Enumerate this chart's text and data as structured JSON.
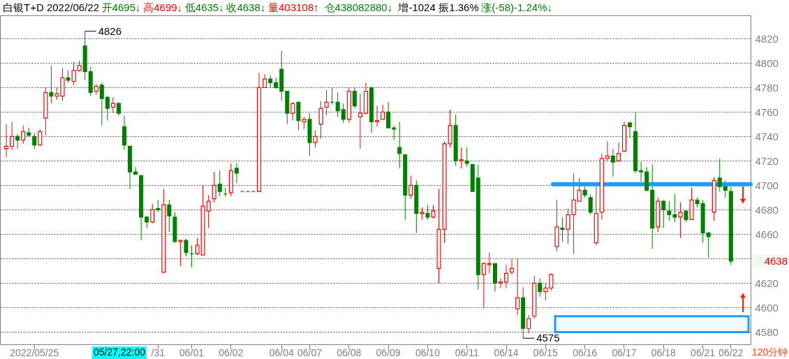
{
  "chart_data": {
    "type": "candlestick",
    "title": "白银T+D 2022/06/22 开4695↓高4699↓低4635↓收4638↓量403108↑ 仓438082880↓ 增-1024 振1.36% 涨(-58)-1.24%↓",
    "categories": [
      null,
      null,
      null,
      null,
      null,
      "2022/05/25",
      null,
      null,
      null,
      null,
      null,
      null,
      null,
      null,
      null,
      null,
      null,
      null,
      null,
      null,
      null,
      null,
      null,
      null,
      null,
      null,
      null,
      "/31",
      null,
      null,
      null,
      null,
      null,
      "06/01",
      null,
      null,
      null,
      null,
      null,
      null,
      "06/02",
      null,
      null,
      null,
      null,
      null,
      null,
      null,
      null,
      "06/04",
      null,
      null,
      null,
      null,
      "06/07",
      null,
      null,
      null,
      null,
      null,
      null,
      "06/08",
      null,
      null,
      null,
      null,
      null,
      null,
      "06/09",
      null,
      null,
      null,
      null,
      null,
      null,
      "06/10",
      null,
      null,
      null,
      null,
      null,
      null,
      "06/11",
      null,
      null,
      null,
      null,
      null,
      null,
      "06/14",
      null,
      null,
      null,
      null,
      null,
      null,
      "06/15",
      null,
      null,
      null,
      null,
      null,
      null,
      "06/16",
      null,
      null,
      null,
      null,
      null,
      null,
      "06/17",
      null,
      null,
      null,
      null,
      null,
      null,
      "06/18",
      null,
      null,
      null,
      null,
      null,
      null,
      "06/21",
      null,
      null,
      null,
      null,
      "06/22"
    ],
    "ohlc": [
      [
        4730,
        4750,
        4723,
        4732
      ],
      [
        4732,
        4752,
        4729,
        4740
      ],
      [
        4740,
        4742,
        4730,
        4737
      ],
      [
        4737,
        4749,
        4734,
        4744
      ],
      [
        4743,
        4747,
        4740,
        4741
      ],
      [
        4740,
        4743,
        4730,
        4733
      ],
      [
        4733,
        4746,
        4732,
        4744
      ],
      [
        4755,
        4780,
        4741,
        4776
      ],
      [
        4776,
        4798,
        4767,
        4773
      ],
      [
        4773,
        4780,
        4770,
        4775
      ],
      [
        4773,
        4796,
        4769,
        4788
      ],
      [
        4788,
        4794,
        4784,
        4786
      ],
      [
        4785,
        4801,
        4782,
        4794
      ],
      [
        4794,
        4802,
        4793,
        4798
      ],
      [
        4814,
        4826,
        4786,
        4793
      ],
      [
        4793,
        4797,
        4773,
        4776
      ],
      [
        4777,
        4783,
        4774,
        4781
      ],
      [
        4782,
        4784,
        4749,
        4771
      ],
      [
        4772,
        4773,
        4753,
        4763
      ],
      [
        4764,
        4772,
        4759,
        4767
      ],
      [
        4767,
        4768,
        4757,
        4759
      ],
      [
        4748,
        4757,
        4729,
        4733
      ],
      [
        4732,
        4732,
        4697,
        4711
      ],
      [
        4711,
        4715,
        4709,
        4709
      ],
      [
        4708,
        4708,
        4655,
        4674
      ],
      [
        4674,
        4675,
        4665,
        4670
      ],
      [
        4670,
        4685,
        4669,
        4680
      ],
      [
        4681,
        4688,
        4678,
        4680
      ],
      [
        4629,
        4697,
        4628,
        4684
      ],
      [
        4684,
        4688,
        4662,
        4675
      ],
      [
        4674,
        4678,
        4653,
        4654
      ],
      [
        4654,
        4655,
        4634,
        4655
      ],
      [
        4655,
        4656,
        4642,
        4645
      ],
      [
        4644,
        4651,
        4633,
        4644
      ],
      [
        4644,
        4657,
        4643,
        4651
      ],
      [
        4643,
        4700,
        4643,
        4683
      ],
      [
        4679,
        4692,
        4665,
        4687
      ],
      [
        4689,
        4711,
        4686,
        4700
      ],
      [
        4701,
        4712,
        4691,
        4695
      ],
      [
        4693,
        4698,
        4691,
        4693
      ],
      [
        4694,
        4718,
        4691,
        4712
      ],
      [
        4714,
        4718,
        4702,
        4710
      ],
      [
        4695,
        4695,
        4695,
        4695
      ],
      [
        4695,
        4695,
        4695,
        4695
      ],
      [
        4695,
        4695,
        4695,
        4695
      ],
      [
        4695,
        4792,
        4695,
        4780
      ],
      [
        4780,
        4791,
        4780,
        4787
      ],
      [
        4787,
        4790,
        4780,
        4784
      ],
      [
        4784,
        4788,
        4779,
        4780
      ],
      [
        4795,
        4810,
        4769,
        4777
      ],
      [
        4777,
        4777,
        4750,
        4759
      ],
      [
        4759,
        4768,
        4753,
        4767
      ],
      [
        4768,
        4768,
        4745,
        4753
      ],
      [
        4752,
        4756,
        4746,
        4754
      ],
      [
        4754,
        4759,
        4724,
        4735
      ],
      [
        4735,
        4745,
        4731,
        4740
      ],
      [
        4750,
        4769,
        4738,
        4763
      ],
      [
        4764,
        4778,
        4757,
        4768
      ],
      [
        4768,
        4780,
        4766,
        4768
      ],
      [
        4768,
        4776,
        4756,
        4761
      ],
      [
        4762,
        4767,
        4751,
        4754
      ],
      [
        4754,
        4780,
        4751,
        4777
      ],
      [
        4777,
        4780,
        4763,
        4765
      ],
      [
        4756,
        4775,
        4730,
        4759
      ],
      [
        4759,
        4784,
        4758,
        4777
      ],
      [
        4780,
        4780,
        4743,
        4752
      ],
      [
        4752,
        4765,
        4748,
        4753
      ],
      [
        4754,
        4766,
        4754,
        4760
      ],
      [
        4760,
        4768,
        4747,
        4747
      ],
      [
        4747,
        4749,
        4737,
        4746
      ],
      [
        4731,
        4752,
        4714,
        4726
      ],
      [
        4725,
        4725,
        4672,
        4692
      ],
      [
        4692,
        4708,
        4689,
        4700
      ],
      [
        4700,
        4704,
        4661,
        4677
      ],
      [
        4677,
        4682,
        4672,
        4678
      ],
      [
        4677,
        4684,
        4672,
        4674
      ],
      [
        4674,
        4684,
        4673,
        4679
      ],
      [
        4632,
        4697,
        4620,
        4664
      ],
      [
        4664,
        4736,
        4653,
        4734
      ],
      [
        4734,
        4762,
        4731,
        4749
      ],
      [
        4749,
        4758,
        4716,
        4720
      ],
      [
        4720,
        4731,
        4714,
        4721
      ],
      [
        4720,
        4731,
        4715,
        4718
      ],
      [
        4717,
        4717,
        4695,
        4695
      ],
      [
        4706,
        4717,
        4615,
        4627
      ],
      [
        4627,
        4637,
        4600,
        4636
      ],
      [
        4635,
        4645,
        4628,
        4636
      ],
      [
        4636,
        4636,
        4613,
        4620
      ],
      [
        4620,
        4624,
        4616,
        4621
      ],
      [
        4621,
        4635,
        4616,
        4628
      ],
      [
        4629,
        4640,
        4627,
        4632
      ],
      [
        4599,
        4640,
        4594,
        4608
      ],
      [
        4608,
        4617,
        4575,
        4583
      ],
      [
        4583,
        4594,
        4579,
        4591
      ],
      [
        4593,
        4626,
        4591,
        4620
      ],
      [
        4620,
        4624,
        4609,
        4613
      ],
      [
        4613,
        4620,
        4606,
        4616
      ],
      [
        4616,
        4628,
        4614,
        4627
      ],
      [
        4650,
        4688,
        4646,
        4666
      ],
      [
        4665,
        4674,
        4654,
        4664
      ],
      [
        4664,
        4681,
        4652,
        4676
      ],
      [
        4676,
        4710,
        4644,
        4688
      ],
      [
        4687,
        4706,
        4687,
        4696
      ],
      [
        4696,
        4699,
        4690,
        4692
      ],
      [
        4690,
        4693,
        4676,
        4678
      ],
      [
        4653,
        4699,
        4651,
        4677
      ],
      [
        4678,
        4726,
        4672,
        4722
      ],
      [
        4722,
        4736,
        4720,
        4724
      ],
      [
        4724,
        4730,
        4707,
        4719
      ],
      [
        4720,
        4735,
        4719,
        4726
      ],
      [
        4728,
        4752,
        4727,
        4749
      ],
      [
        4751,
        4752,
        4739,
        4748
      ],
      [
        4744,
        4760,
        4710,
        4712
      ],
      [
        4712,
        4719,
        4703,
        4711
      ],
      [
        4711,
        4715,
        4695,
        4696
      ],
      [
        4696,
        4717,
        4648,
        4665
      ],
      [
        4666,
        4690,
        4662,
        4687
      ],
      [
        4687,
        4688,
        4665,
        4680
      ],
      [
        4679,
        4687,
        4671,
        4676
      ],
      [
        4676,
        4693,
        4670,
        4674
      ],
      [
        4674,
        4686,
        4657,
        4678
      ],
      [
        4679,
        4679,
        4670,
        4672
      ],
      [
        4672,
        4698,
        4672,
        4688
      ],
      [
        4688,
        4690,
        4682,
        4685
      ],
      [
        4685,
        4688,
        4653,
        4661
      ],
      [
        4661,
        4662,
        4641,
        4658
      ],
      [
        4678,
        4707,
        4671,
        4704
      ],
      [
        4706,
        4722,
        4695,
        4699
      ],
      [
        4699,
        4704,
        4690,
        4696
      ],
      [
        4695,
        4699,
        4635,
        4638
      ]
    ],
    "ylim": [
      4570,
      4839
    ],
    "yticks": [
      4580,
      4600,
      4620,
      {
        "value": 4640,
        "label": null
      },
      4660,
      4680,
      4700,
      4720,
      4740,
      4760,
      4780,
      4800,
      4820
    ],
    "grid": "y",
    "ref_lines": [
      {
        "axis": "y",
        "value": 4701,
        "color": "#1e9bff"
      }
    ],
    "bands": [
      {
        "axis": "y",
        "from": 4580,
        "to": 4593,
        "color": "#1e9bff"
      }
    ],
    "annotations": [
      "05/27,22:00",
      "120分钟",
      "4826",
      "4575",
      "4638"
    ]
  }
}
